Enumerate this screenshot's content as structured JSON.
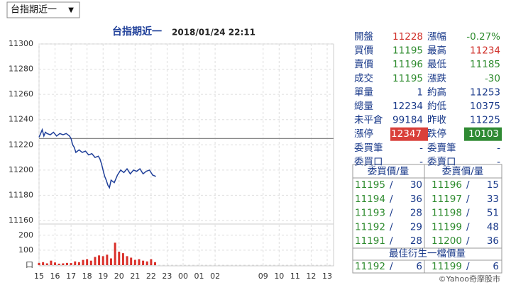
{
  "dropdown": {
    "label": "台指期近一",
    "arrow": "▼"
  },
  "chart_data": [
    {
      "type": "line",
      "title": "台指期近一",
      "subtitle": "2018/01/24 22:11",
      "x": [
        0,
        0.1,
        0.2,
        0.3,
        0.4,
        0.5,
        0.7,
        0.9,
        1.1,
        1.3,
        1.5,
        1.7,
        1.9,
        2.0,
        2.1,
        2.2,
        2.3,
        2.5,
        2.7,
        2.9,
        3.1,
        3.3,
        3.5,
        3.7,
        3.8,
        3.9,
        4.0,
        4.1,
        4.2,
        4.3,
        4.4,
        4.5,
        4.7,
        4.9,
        5.1,
        5.3,
        5.5,
        5.7,
        5.9,
        6.1,
        6.3,
        6.5,
        6.7,
        6.9,
        7.1,
        7.3
      ],
      "values": [
        11226,
        11229,
        11232,
        11227,
        11230,
        11229,
        11228,
        11230,
        11227,
        11229,
        11228,
        11229,
        11227,
        11225,
        11220,
        11218,
        11214,
        11216,
        11214,
        11215,
        11212,
        11213,
        11210,
        11211,
        11209,
        11205,
        11200,
        11195,
        11192,
        11188,
        11186,
        11192,
        11190,
        11196,
        11200,
        11198,
        11201,
        11197,
        11200,
        11199,
        11201,
        11197,
        11199,
        11200,
        11196,
        11195
      ],
      "color": "#1f3f99",
      "xlim": [
        0,
        18.4
      ],
      "ylim": [
        11160,
        11300
      ],
      "yticks": [
        11160,
        11180,
        11200,
        11220,
        11240,
        11260,
        11280,
        11300
      ],
      "grid": true
    },
    {
      "type": "bar",
      "x": [
        0,
        0.25,
        0.5,
        0.75,
        1,
        1.25,
        1.5,
        1.75,
        2,
        2.25,
        2.5,
        2.75,
        3,
        3.25,
        3.5,
        3.75,
        4,
        4.25,
        4.5,
        4.75,
        5,
        5.25,
        5.5,
        5.75,
        6,
        6.25,
        6.5,
        6.75,
        7,
        7.25
      ],
      "values": [
        15,
        20,
        12,
        30,
        18,
        10,
        12,
        15,
        14,
        25,
        20,
        35,
        40,
        30,
        55,
        65,
        60,
        70,
        45,
        150,
        90,
        80,
        60,
        50,
        35,
        40,
        30,
        25,
        40,
        20
      ],
      "color": "#d9302a",
      "xlim": [
        0,
        18.4
      ],
      "xticks": [
        {
          "value": 0,
          "label": "15"
        },
        {
          "value": 1,
          "label": "16"
        },
        {
          "value": 2,
          "label": "17"
        },
        {
          "value": 3,
          "label": "18"
        },
        {
          "value": 4,
          "label": "19"
        },
        {
          "value": 5,
          "label": "20"
        },
        {
          "value": 6,
          "label": "21"
        },
        {
          "value": 7,
          "label": "22"
        },
        {
          "value": 8,
          "label": "23"
        },
        {
          "value": 9,
          "label": "00"
        },
        {
          "value": 10,
          "label": "01"
        },
        {
          "value": 11,
          "label": "02"
        },
        {
          "value": 14,
          "label": "09"
        },
        {
          "value": 15,
          "label": "10"
        },
        {
          "value": 16,
          "label": "11"
        },
        {
          "value": 17,
          "label": "12"
        },
        {
          "value": 18,
          "label": "13"
        }
      ],
      "ylim": [
        0,
        270
      ],
      "yticks": [
        {
          "value": 0,
          "label": "口"
        },
        100,
        200
      ],
      "grid": true
    }
  ],
  "quote": {
    "rows": [
      [
        {
          "label": "開盤",
          "value": "11228",
          "tone": "red"
        },
        {
          "label": "漲幅",
          "value": "-0.27%",
          "tone": "green"
        }
      ],
      [
        {
          "label": "買價",
          "value": "11195",
          "tone": "green"
        },
        {
          "label": "最高",
          "value": "11234",
          "tone": "red"
        }
      ],
      [
        {
          "label": "賣價",
          "value": "11196",
          "tone": "green"
        },
        {
          "label": "最低",
          "value": "11185",
          "tone": "green"
        }
      ],
      [
        {
          "label": "成交",
          "value": "11195",
          "tone": "green"
        },
        {
          "label": "漲跌",
          "value": "-30",
          "tone": "green"
        }
      ],
      [
        {
          "label": "單量",
          "value": "1",
          "tone": "blue"
        },
        {
          "label": "約高",
          "value": "11253",
          "tone": "blue"
        }
      ],
      [
        {
          "label": "總量",
          "value": "12234",
          "tone": "blue"
        },
        {
          "label": "約低",
          "value": "10375",
          "tone": "blue"
        }
      ],
      [
        {
          "label": "未平倉",
          "value": "99184",
          "tone": "blue"
        },
        {
          "label": "昨收",
          "value": "11225",
          "tone": "blue"
        }
      ],
      [
        {
          "label": "漲停",
          "value": "12347",
          "tone": "red-badge"
        },
        {
          "label": "跌停",
          "value": "10103",
          "tone": "green-badge"
        }
      ],
      [
        {
          "label": "委買筆",
          "value": "-",
          "tone": "blue"
        },
        {
          "label": "委賣筆",
          "value": "-",
          "tone": "blue"
        }
      ],
      [
        {
          "label": "委買口",
          "value": "-",
          "tone": "blue"
        },
        {
          "label": "委賣口",
          "value": "-",
          "tone": "blue"
        }
      ]
    ]
  },
  "order_book": {
    "bid_header": "委買價/量",
    "ask_header": "委賣價/量",
    "separator": "/",
    "bids": [
      [
        11195,
        30
      ],
      [
        11194,
        36
      ],
      [
        11193,
        28
      ],
      [
        11192,
        29
      ],
      [
        11191,
        28
      ]
    ],
    "asks": [
      [
        11196,
        15
      ],
      [
        11197,
        33
      ],
      [
        11198,
        51
      ],
      [
        11199,
        48
      ],
      [
        11200,
        36
      ]
    ],
    "best_header": "最佳衍生一檔價量",
    "best_bid": [
      11192,
      6
    ],
    "best_ask": [
      11199,
      6
    ]
  },
  "footer": "©Yahoo奇摩股市"
}
